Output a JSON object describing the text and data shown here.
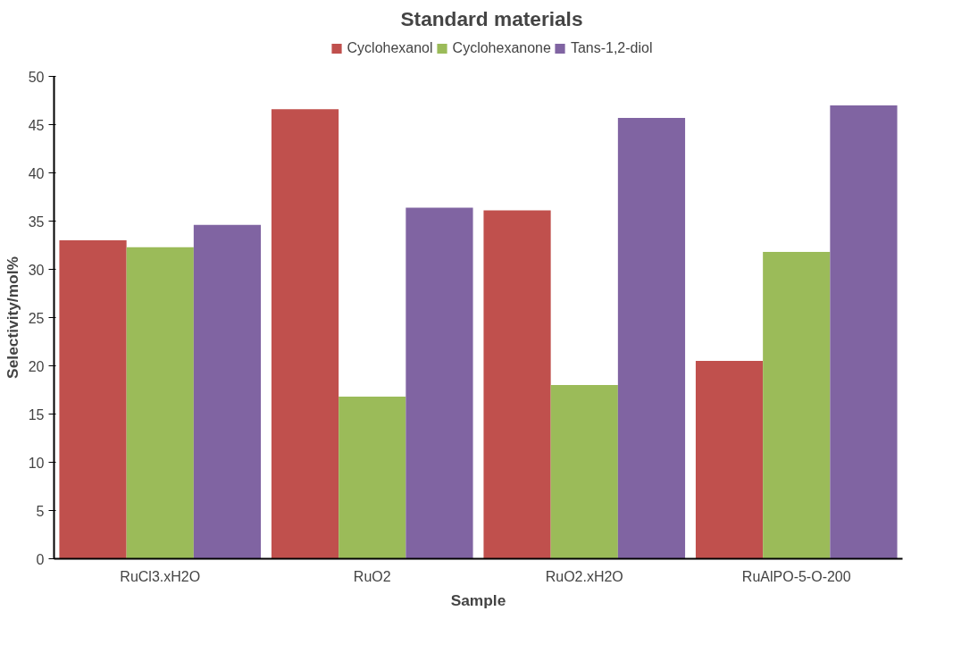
{
  "chart_data": {
    "type": "bar",
    "title": "Standard materials",
    "xlabel": "Sample",
    "ylabel": "Selectivity/mol%",
    "categories": [
      "RuCl3.xH2O",
      "RuO2",
      "RuO2.xH2O",
      "RuAlPO-5-O-200"
    ],
    "series": [
      {
        "name": "Cyclohexanol",
        "color": "#c0504d",
        "values": [
          33.0,
          46.6,
          36.1,
          20.5
        ]
      },
      {
        "name": "Cyclohexanone",
        "color": "#9bbb59",
        "values": [
          32.3,
          16.8,
          18.0,
          31.8
        ]
      },
      {
        "name": "Tans-1,2-diol",
        "color": "#8064a2",
        "values": [
          34.6,
          36.4,
          45.7,
          47.0
        ]
      }
    ],
    "ylim": [
      0,
      50
    ],
    "yticks": [
      0,
      5,
      10,
      15,
      20,
      25,
      30,
      35,
      40,
      45,
      50
    ],
    "grid": false,
    "legend": "top"
  }
}
